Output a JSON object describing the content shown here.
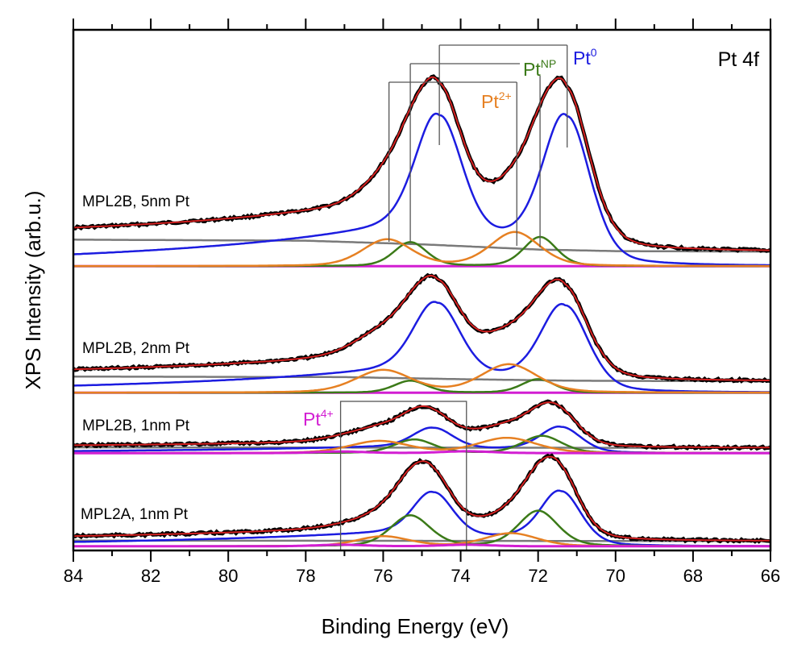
{
  "chart_data": {
    "type": "line",
    "title": "Pt 4f",
    "xlabel": "Binding Energy (eV)",
    "ylabel": "XPS Intensity (arb.u.)",
    "xlim": [
      84,
      66
    ],
    "x_reversed": true,
    "ylim": [
      0,
      100
    ],
    "xticks": [
      84,
      82,
      80,
      78,
      76,
      74,
      72,
      70,
      68,
      66
    ],
    "minor_tick_step": 1,
    "grid": false,
    "colors": {
      "data": "#000000",
      "envelope": "#d42020",
      "background": "#7a7a7a",
      "Pt0": "#1c1ce0",
      "PtNP": "#3b7a18",
      "Pt2+": "#e68022",
      "Pt4+": "#d21ed2"
    },
    "peak_shape": {
      "type": "pseudo-voigt",
      "Pt0_asymmetric_tail": true
    },
    "spectra": [
      {
        "label": "MPL2B, 5nm Pt",
        "offset": 54.6,
        "background": [
          [
            84,
            5.1
          ],
          [
            78,
            4.9
          ],
          [
            75,
            4.2
          ],
          [
            72,
            3.2
          ],
          [
            70,
            2.9
          ],
          [
            66,
            2.8
          ]
        ],
        "components": [
          {
            "species": "Pt0",
            "peaks": [
              {
                "center": 74.55,
                "height": 25.1
              },
              {
                "center": 71.25,
                "height": 28.5
              }
            ],
            "fwhm": 1.4
          },
          {
            "species": "PtNP",
            "peaks": [
              {
                "center": 75.3,
                "height": 4.6
              },
              {
                "center": 71.95,
                "height": 5.6
              }
            ],
            "fwhm": 1.0
          },
          {
            "species": "Pt2+",
            "peaks": [
              {
                "center": 75.9,
                "height": 5.1
              },
              {
                "center": 72.6,
                "height": 6.5
              }
            ],
            "fwhm": 1.5
          }
        ]
      },
      {
        "label": "MPL2B, 2nm Pt",
        "offset": 30.3,
        "background": [
          [
            84,
            3.1
          ],
          [
            77,
            3.0
          ],
          [
            74,
            2.6
          ],
          [
            71,
            2.3
          ],
          [
            66,
            2.2
          ]
        ],
        "components": [
          {
            "species": "Pt0",
            "peaks": [
              {
                "center": 74.6,
                "height": 15.0
              },
              {
                "center": 71.3,
                "height": 16.6
              }
            ],
            "fwhm": 1.4
          },
          {
            "species": "PtNP",
            "peaks": [
              {
                "center": 75.3,
                "height": 2.3
              },
              {
                "center": 72.0,
                "height": 2.6
              }
            ],
            "fwhm": 1.0
          },
          {
            "species": "Pt2+",
            "peaks": [
              {
                "center": 76.0,
                "height": 4.3
              },
              {
                "center": 72.75,
                "height": 5.4
              }
            ],
            "fwhm": 1.7
          }
        ]
      },
      {
        "label": "MPL2B, 1nm Pt",
        "offset": 18.7,
        "background": [
          [
            84,
            1.1
          ],
          [
            66,
            1.0
          ]
        ],
        "components": [
          {
            "species": "Pt0",
            "peaks": [
              {
                "center": 74.7,
                "height": 4.2
              },
              {
                "center": 71.4,
                "height": 5.0
              }
            ],
            "fwhm": 1.2
          },
          {
            "species": "PtNP",
            "peaks": [
              {
                "center": 75.2,
                "height": 2.6
              },
              {
                "center": 71.9,
                "height": 3.3
              }
            ],
            "fwhm": 1.2
          },
          {
            "species": "Pt2+",
            "peaks": [
              {
                "center": 76.1,
                "height": 2.3
              },
              {
                "center": 72.8,
                "height": 2.9
              }
            ],
            "fwhm": 1.8
          },
          {
            "species": "Pt4+",
            "peaks": [
              {
                "center": 77.1,
                "height": 0.3
              },
              {
                "center": 73.85,
                "height": 0.35
              }
            ],
            "fwhm": 1.5
          }
        ]
      },
      {
        "label": "MPL2A, 1nm Pt",
        "offset": 0.8,
        "background": [
          [
            84,
            1.1
          ],
          [
            66,
            1.0
          ]
        ],
        "components": [
          {
            "species": "Pt0",
            "peaks": [
              {
                "center": 74.7,
                "height": 9.0
              },
              {
                "center": 71.4,
                "height": 10.5
              }
            ],
            "fwhm": 1.2
          },
          {
            "species": "PtNP",
            "peaks": [
              {
                "center": 75.3,
                "height": 5.9
              },
              {
                "center": 72.0,
                "height": 6.8
              }
            ],
            "fwhm": 1.2
          },
          {
            "species": "Pt2+",
            "peaks": [
              {
                "center": 76.0,
                "height": 1.9
              },
              {
                "center": 72.7,
                "height": 2.5
              }
            ],
            "fwhm": 1.6
          },
          {
            "species": "Pt4+",
            "peaks": [
              {
                "center": 77.1,
                "height": 0.3
              },
              {
                "center": 73.85,
                "height": 0.3
              }
            ],
            "fwhm": 1.5
          }
        ]
      }
    ],
    "annotations": [
      {
        "species": "Pt0",
        "base": "Pt",
        "sup": "0",
        "positions": [
          74.55,
          71.25
        ]
      },
      {
        "species": "PtNP",
        "base": "Pt",
        "sup": "NP",
        "positions": [
          75.3,
          71.95
        ]
      },
      {
        "species": "Pt2+",
        "base": "Pt",
        "sup": "2+",
        "positions": [
          75.85,
          72.55
        ]
      },
      {
        "species": "Pt4+",
        "base": "Pt",
        "sup": "4+",
        "positions": [
          77.1,
          73.85
        ]
      }
    ]
  }
}
